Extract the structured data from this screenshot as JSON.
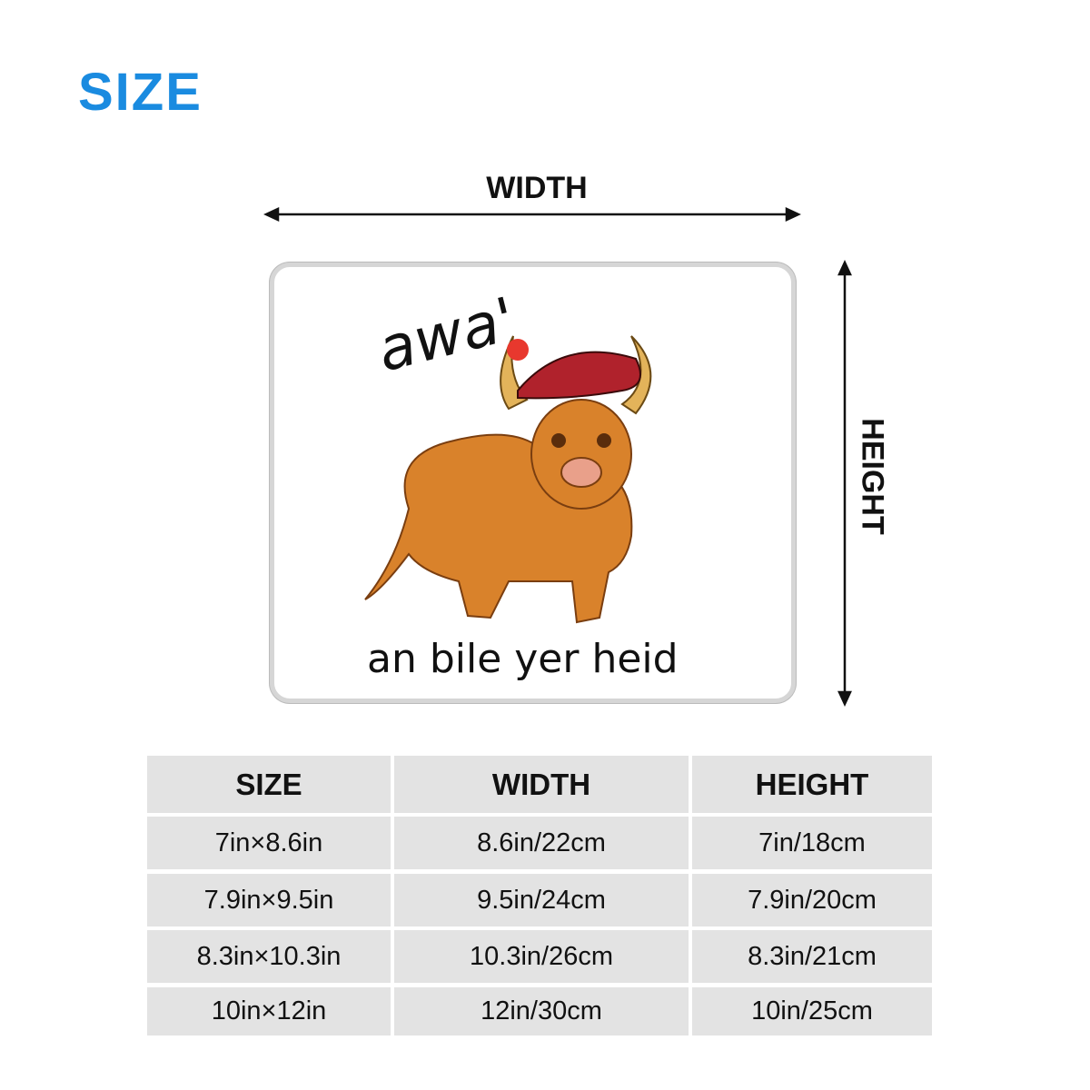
{
  "title": "SIZE",
  "diagram": {
    "width_label": "WIDTH",
    "height_label": "HEIGHT"
  },
  "product_image": {
    "text_top": "awa'",
    "text_bottom": "an bile yer heid"
  },
  "table": {
    "headers": [
      "SIZE",
      "WIDTH",
      "HEIGHT"
    ],
    "rows": [
      [
        "7in×8.6in",
        "8.6in/22cm",
        "7in/18cm"
      ],
      [
        "7.9in×9.5in",
        "9.5in/24cm",
        "7.9in/20cm"
      ],
      [
        "8.3in×10.3in",
        "10.3in/26cm",
        "8.3in/21cm"
      ],
      [
        "10in×12in",
        "12in/30cm",
        "10in/25cm"
      ]
    ]
  },
  "colors": {
    "title": "#1a8be0",
    "cell_bg": "#e3e3e3"
  }
}
